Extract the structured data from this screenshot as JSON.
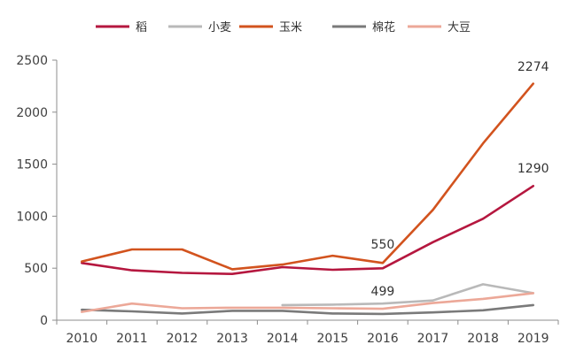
{
  "chart_data": {
    "type": "line",
    "title": "",
    "xlabel": "",
    "ylabel": "",
    "x": [
      "2010",
      "2011",
      "2012",
      "2013",
      "2014",
      "2015",
      "2016",
      "2017",
      "2018",
      "2019"
    ],
    "ylim": [
      0,
      2500
    ],
    "yticks": [
      0,
      500,
      1000,
      1500,
      2000,
      2500
    ],
    "grid": false,
    "legend_position": "top",
    "series": [
      {
        "name": "稻",
        "color": "#b5173f",
        "values": [
          550,
          480,
          455,
          445,
          510,
          485,
          499,
          750,
          975,
          1290
        ]
      },
      {
        "name": "小麦",
        "color": "#b9b9b9",
        "values": [
          null,
          null,
          null,
          null,
          145,
          150,
          160,
          190,
          345,
          260
        ]
      },
      {
        "name": "玉米",
        "color": "#d2531e",
        "values": [
          565,
          680,
          680,
          490,
          535,
          620,
          550,
          1060,
          1700,
          2274
        ]
      },
      {
        "name": "棉花",
        "color": "#7a7a7a",
        "values": [
          100,
          85,
          65,
          90,
          90,
          65,
          60,
          75,
          95,
          145
        ]
      },
      {
        "name": "大豆",
        "color": "#eca898",
        "values": [
          80,
          160,
          115,
          120,
          120,
          115,
          110,
          165,
          205,
          260
        ]
      }
    ],
    "annotations": [
      {
        "text": "2274",
        "x": "2019",
        "y": 2274
      },
      {
        "text": "1290",
        "x": "2019",
        "y": 1290
      },
      {
        "text": "550",
        "x": "2016",
        "y": 550
      },
      {
        "text": "499",
        "x": "2016",
        "y": 499
      }
    ]
  }
}
